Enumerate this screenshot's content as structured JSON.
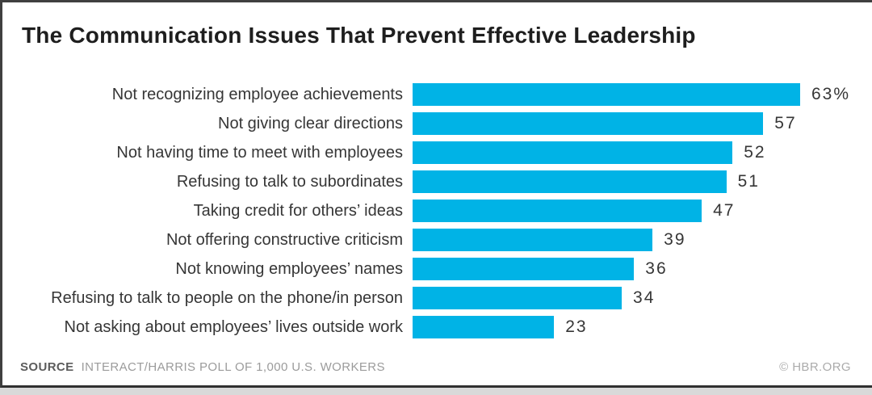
{
  "header": {
    "title": "The Communication Issues That Prevent Effective Leadership"
  },
  "chart_data": {
    "type": "bar",
    "orientation": "horizontal",
    "title": "The Communication Issues That Prevent Effective Leadership",
    "categories": [
      "Not recognizing employee achievements",
      "Not giving clear directions",
      "Not having time to meet with employees",
      "Refusing to talk to subordinates",
      "Taking credit for others’ ideas",
      "Not offering constructive criticism",
      "Not knowing employees’ names",
      "Refusing to talk to people on the phone/in person",
      "Not asking about employees’ lives outside work"
    ],
    "values": [
      63,
      57,
      52,
      51,
      47,
      39,
      36,
      34,
      23
    ],
    "value_labels": [
      "63%",
      "57",
      "52",
      "51",
      "47",
      "39",
      "36",
      "34",
      "23"
    ],
    "xlim": [
      0,
      63
    ],
    "unit": "percent of U.S. workers",
    "grid": false,
    "legend": false,
    "bar_color": "#00b3e6"
  },
  "footer": {
    "source_label": "SOURCE",
    "source_text": "INTERACT/HARRIS POLL OF 1,000 U.S. WORKERS",
    "credit": "© HBR.ORG"
  },
  "colors": {
    "bar": "#00b3e6",
    "title_text": "#1e1e1e",
    "label_text": "#363636",
    "border": "#3f3f3f",
    "source_text": "#9b9b9b",
    "bottom_strip": "#d9d9d9"
  }
}
